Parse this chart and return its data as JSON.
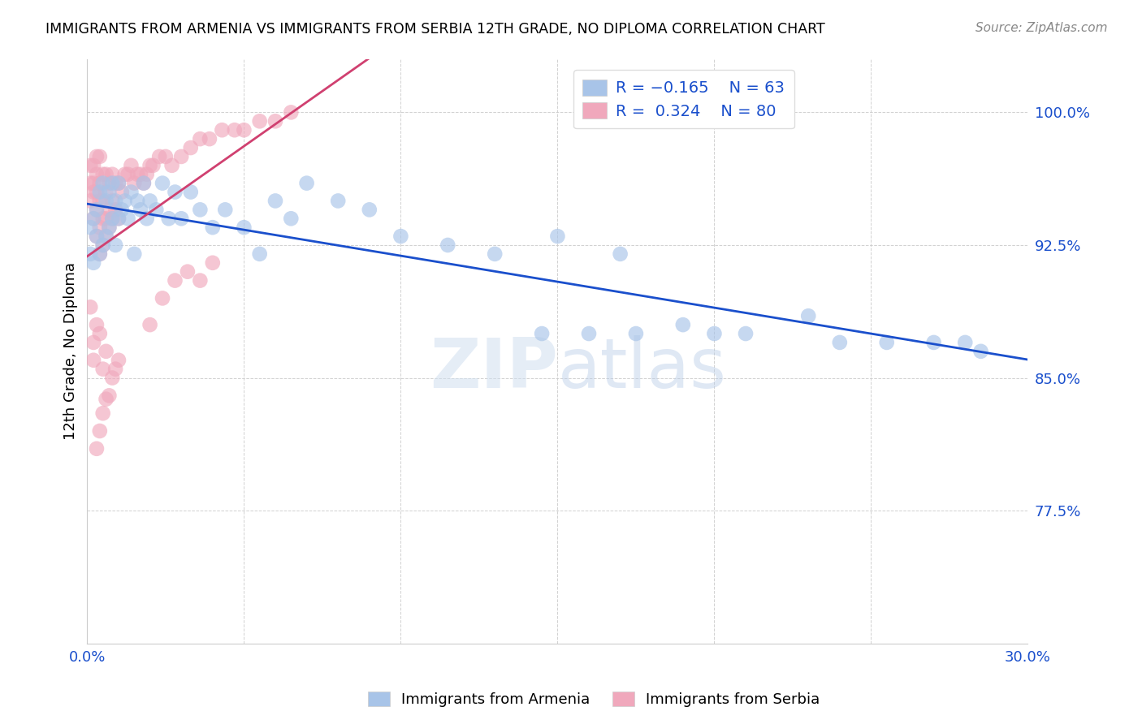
{
  "title": "IMMIGRANTS FROM ARMENIA VS IMMIGRANTS FROM SERBIA 12TH GRADE, NO DIPLOMA CORRELATION CHART",
  "source": "Source: ZipAtlas.com",
  "ylabel": "12th Grade, No Diploma",
  "ytick_vals": [
    1.0,
    0.925,
    0.85,
    0.775
  ],
  "xlim": [
    0.0,
    0.3
  ],
  "ylim": [
    0.7,
    1.03
  ],
  "color_armenia": "#a8c4e8",
  "color_serbia": "#f0a8bc",
  "trendline_armenia_color": "#1a4fcc",
  "trendline_serbia_color": "#d04070",
  "watermark_color": "#d0dff0",
  "background_color": "#ffffff",
  "armenia_x": [
    0.001,
    0.001,
    0.002,
    0.002,
    0.003,
    0.003,
    0.004,
    0.004,
    0.005,
    0.005,
    0.006,
    0.006,
    0.007,
    0.007,
    0.008,
    0.008,
    0.009,
    0.009,
    0.01,
    0.01,
    0.011,
    0.012,
    0.013,
    0.014,
    0.015,
    0.016,
    0.017,
    0.018,
    0.019,
    0.02,
    0.022,
    0.024,
    0.026,
    0.028,
    0.03,
    0.033,
    0.036,
    0.04,
    0.044,
    0.05,
    0.055,
    0.06,
    0.065,
    0.07,
    0.08,
    0.09,
    0.1,
    0.115,
    0.13,
    0.15,
    0.17,
    0.19,
    0.21,
    0.23,
    0.255,
    0.27,
    0.285,
    0.175,
    0.145,
    0.16,
    0.2,
    0.24,
    0.28
  ],
  "armenia_y": [
    0.92,
    0.935,
    0.915,
    0.94,
    0.93,
    0.945,
    0.92,
    0.955,
    0.925,
    0.96,
    0.93,
    0.95,
    0.935,
    0.955,
    0.94,
    0.96,
    0.925,
    0.95,
    0.94,
    0.96,
    0.945,
    0.95,
    0.94,
    0.955,
    0.92,
    0.95,
    0.945,
    0.96,
    0.94,
    0.95,
    0.945,
    0.96,
    0.94,
    0.955,
    0.94,
    0.955,
    0.945,
    0.935,
    0.945,
    0.935,
    0.92,
    0.95,
    0.94,
    0.96,
    0.95,
    0.945,
    0.93,
    0.925,
    0.92,
    0.93,
    0.92,
    0.88,
    0.875,
    0.885,
    0.87,
    0.87,
    0.865,
    0.875,
    0.875,
    0.875,
    0.875,
    0.87,
    0.87
  ],
  "serbia_x": [
    0.001,
    0.001,
    0.001,
    0.002,
    0.002,
    0.002,
    0.002,
    0.003,
    0.003,
    0.003,
    0.003,
    0.003,
    0.004,
    0.004,
    0.004,
    0.004,
    0.004,
    0.005,
    0.005,
    0.005,
    0.005,
    0.006,
    0.006,
    0.006,
    0.006,
    0.007,
    0.007,
    0.007,
    0.008,
    0.008,
    0.008,
    0.009,
    0.009,
    0.01,
    0.01,
    0.011,
    0.012,
    0.013,
    0.014,
    0.015,
    0.016,
    0.017,
    0.018,
    0.019,
    0.02,
    0.021,
    0.023,
    0.025,
    0.027,
    0.03,
    0.033,
    0.036,
    0.039,
    0.043,
    0.047,
    0.05,
    0.055,
    0.06,
    0.065,
    0.02,
    0.024,
    0.028,
    0.032,
    0.036,
    0.04,
    0.007,
    0.008,
    0.009,
    0.01,
    0.004,
    0.005,
    0.006,
    0.003,
    0.002,
    0.001,
    0.002,
    0.003,
    0.004,
    0.005,
    0.006
  ],
  "serbia_y": [
    0.95,
    0.96,
    0.97,
    0.94,
    0.955,
    0.96,
    0.97,
    0.93,
    0.945,
    0.955,
    0.965,
    0.975,
    0.92,
    0.935,
    0.95,
    0.96,
    0.975,
    0.925,
    0.94,
    0.95,
    0.965,
    0.93,
    0.94,
    0.955,
    0.965,
    0.935,
    0.945,
    0.96,
    0.94,
    0.95,
    0.965,
    0.945,
    0.96,
    0.94,
    0.96,
    0.955,
    0.965,
    0.965,
    0.97,
    0.96,
    0.965,
    0.965,
    0.96,
    0.965,
    0.97,
    0.97,
    0.975,
    0.975,
    0.97,
    0.975,
    0.98,
    0.985,
    0.985,
    0.99,
    0.99,
    0.99,
    0.995,
    0.995,
    1.0,
    0.88,
    0.895,
    0.905,
    0.91,
    0.905,
    0.915,
    0.84,
    0.85,
    0.855,
    0.86,
    0.82,
    0.83,
    0.838,
    0.81,
    0.86,
    0.89,
    0.87,
    0.88,
    0.875,
    0.855,
    0.865
  ]
}
